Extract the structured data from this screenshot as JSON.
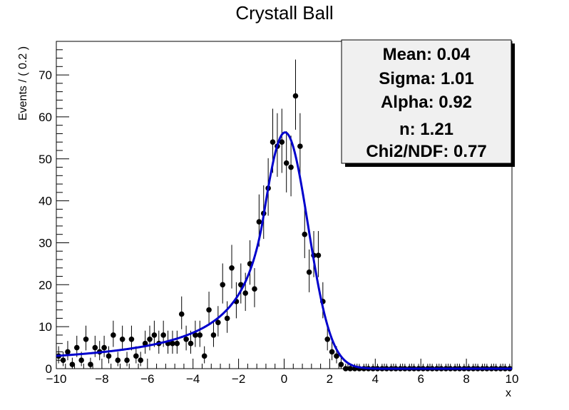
{
  "chart_data": {
    "type": "scatter",
    "title": "Crystall Ball",
    "xlabel": "x",
    "ylabel": "Events / ( 0.2 )",
    "xlim": [
      -10,
      10
    ],
    "ylim": [
      0,
      78
    ],
    "x_ticks": [
      -10,
      -8,
      -6,
      -4,
      -2,
      0,
      2,
      4,
      6,
      8,
      10
    ],
    "y_ticks": [
      0,
      10,
      20,
      30,
      40,
      50,
      60,
      70
    ],
    "colors": {
      "data": "#000000",
      "fit": "#0000cc",
      "stats_fill": "#f0f0f0"
    },
    "stats_box": {
      "placement": "top-right",
      "lines": [
        "Mean: 0.04",
        "Sigma: 1.01",
        "Alpha: 0.92",
        "n: 1.21",
        "Chi2/NDF: 0.77"
      ]
    },
    "fit": {
      "name": "Crystal Ball fit",
      "mean": 0.04,
      "sigma": 1.01,
      "alpha": 0.92,
      "n": 1.21,
      "peak": 56.3
    },
    "series": [
      {
        "name": "data",
        "x": [
          -9.9,
          -9.7,
          -9.5,
          -9.3,
          -9.1,
          -8.9,
          -8.7,
          -8.5,
          -8.3,
          -8.1,
          -7.9,
          -7.7,
          -7.5,
          -7.3,
          -7.1,
          -6.9,
          -6.7,
          -6.5,
          -6.3,
          -6.1,
          -5.9,
          -5.7,
          -5.5,
          -5.3,
          -5.1,
          -4.9,
          -4.7,
          -4.5,
          -4.3,
          -4.1,
          -3.9,
          -3.7,
          -3.5,
          -3.3,
          -3.1,
          -2.9,
          -2.7,
          -2.5,
          -2.3,
          -2.1,
          -1.9,
          -1.7,
          -1.5,
          -1.3,
          -1.1,
          -0.9,
          -0.7,
          -0.5,
          -0.3,
          -0.1,
          0.1,
          0.3,
          0.5,
          0.7,
          0.9,
          1.1,
          1.3,
          1.5,
          1.7,
          1.9,
          2.1,
          2.3,
          2.5,
          2.7,
          2.9,
          3.1,
          3.3,
          3.5,
          3.7,
          3.9,
          4.1,
          4.3,
          4.5,
          4.7,
          4.9,
          5.1,
          5.3,
          5.5,
          5.7,
          5.9,
          6.1,
          6.3,
          6.5,
          6.7,
          6.9,
          7.1,
          7.3,
          7.5,
          7.7,
          7.9,
          8.1,
          8.3,
          8.5,
          8.7,
          8.9,
          9.1,
          9.3,
          9.5,
          9.7,
          9.9
        ],
        "y": [
          3,
          2,
          4,
          1,
          5,
          2,
          7,
          1,
          5,
          4,
          5,
          3,
          8,
          2,
          7,
          2,
          7,
          3,
          2,
          6,
          7,
          8,
          6,
          8,
          6,
          6,
          6,
          13,
          7,
          6,
          8,
          8,
          3,
          14,
          8,
          11,
          20,
          12,
          24,
          16,
          20,
          18,
          25,
          19,
          35,
          37,
          43,
          54,
          53,
          54,
          49,
          48,
          65,
          53,
          32,
          23,
          27,
          27,
          16,
          7,
          4,
          3,
          1,
          0,
          0,
          0,
          0,
          0,
          0,
          0,
          0,
          0,
          0,
          0,
          0,
          0,
          0,
          0,
          0,
          0,
          0,
          0,
          0,
          0,
          0,
          0,
          0,
          0,
          0,
          0,
          0,
          0,
          0,
          0,
          0,
          0,
          0,
          0,
          0,
          0
        ]
      }
    ]
  }
}
